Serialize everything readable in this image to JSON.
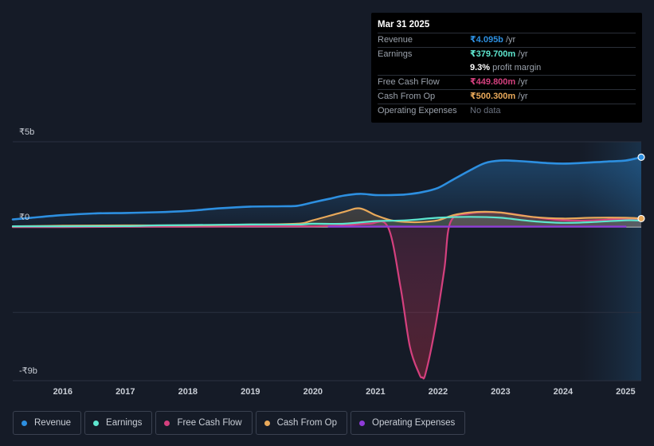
{
  "tooltip": {
    "date": "Mar 31 2025",
    "rows": [
      {
        "label": "Revenue",
        "value": "₹4.095b",
        "unit": " /yr",
        "color": "#2d8fe0"
      },
      {
        "label": "Earnings",
        "value": "₹379.700m",
        "unit": " /yr",
        "color": "#5ee6cf"
      },
      {
        "label": "",
        "value": "9.3%",
        "unit": " profit margin",
        "color": "#ffffff"
      },
      {
        "label": "Free Cash Flow",
        "value": "₹449.800m",
        "unit": " /yr",
        "color": "#d4407e"
      },
      {
        "label": "Cash From Op",
        "value": "₹500.300m",
        "unit": " /yr",
        "color": "#e9a95a"
      },
      {
        "label": "Operating Expenses",
        "value": "No data",
        "unit": "",
        "color": "#6b7280"
      }
    ]
  },
  "chart_data": {
    "type": "line",
    "y_axis_labels": [
      "₹5b",
      "₹0",
      "-₹9b"
    ],
    "ylim": [
      -9,
      5
    ],
    "x_tick_labels": [
      "2016",
      "2017",
      "2018",
      "2019",
      "2020",
      "2021",
      "2022",
      "2023",
      "2024",
      "2025"
    ],
    "x_range": [
      2015.2,
      2025.25
    ],
    "forecast_start": 2024.25,
    "series": [
      {
        "name": "Revenue",
        "color": "#2d8fe0",
        "x": [
          2015.2,
          2015.5,
          2016.0,
          2016.5,
          2017.0,
          2017.5,
          2018.0,
          2018.5,
          2019.0,
          2019.5,
          2019.75,
          2020.0,
          2020.25,
          2020.5,
          2020.75,
          2021.0,
          2021.25,
          2021.5,
          2021.75,
          2022.0,
          2022.25,
          2022.5,
          2022.75,
          2023.0,
          2023.25,
          2023.5,
          2023.75,
          2024.0,
          2024.25,
          2024.5,
          2024.75,
          2025.0,
          2025.25
        ],
        "values": [
          0.45,
          0.55,
          0.7,
          0.8,
          0.83,
          0.87,
          0.95,
          1.1,
          1.2,
          1.22,
          1.25,
          1.45,
          1.65,
          1.85,
          1.95,
          1.88,
          1.88,
          1.92,
          2.05,
          2.3,
          2.8,
          3.3,
          3.75,
          3.9,
          3.88,
          3.82,
          3.75,
          3.72,
          3.75,
          3.8,
          3.85,
          3.9,
          4.095
        ]
      },
      {
        "name": "Earnings",
        "color": "#5ee6cf",
        "x": [
          2015.2,
          2016.0,
          2017.0,
          2017.5,
          2018.0,
          2019.0,
          2019.75,
          2020.0,
          2020.5,
          2021.0,
          2021.5,
          2022.0,
          2022.5,
          2023.0,
          2023.5,
          2024.0,
          2024.5,
          2025.0,
          2025.25
        ],
        "values": [
          0.05,
          0.05,
          0.06,
          0.1,
          0.12,
          0.15,
          0.15,
          0.2,
          0.2,
          0.35,
          0.4,
          0.55,
          0.6,
          0.55,
          0.35,
          0.25,
          0.3,
          0.4,
          0.38
        ]
      },
      {
        "name": "Free Cash Flow",
        "color": "#d4407e",
        "x": [
          2015.2,
          2016.0,
          2017.0,
          2018.0,
          2019.0,
          2019.75,
          2020.0,
          2020.5,
          2020.9,
          2021.2,
          2021.4,
          2021.55,
          2021.7,
          2021.75,
          2021.8,
          2021.95,
          2022.1,
          2022.2,
          2022.5,
          2023.0,
          2023.5,
          2024.0,
          2024.5,
          2025.0,
          2025.25
        ],
        "values": [
          0.0,
          0.0,
          0.02,
          0.02,
          0.05,
          0.05,
          0.05,
          0.1,
          0.2,
          0.0,
          -3.5,
          -7.0,
          -8.6,
          -8.8,
          -8.6,
          -6.0,
          -2.5,
          0.3,
          0.8,
          0.85,
          0.6,
          0.4,
          0.4,
          0.5,
          0.45
        ]
      },
      {
        "name": "Cash From Op",
        "color": "#e9a95a",
        "x": [
          2015.2,
          2016.0,
          2017.0,
          2018.0,
          2019.0,
          2019.75,
          2020.0,
          2020.5,
          2020.75,
          2021.0,
          2021.25,
          2021.5,
          2021.75,
          2022.0,
          2022.25,
          2022.5,
          2022.75,
          2023.0,
          2023.5,
          2024.0,
          2024.5,
          2025.0,
          2025.25
        ],
        "values": [
          0.05,
          0.08,
          0.1,
          0.1,
          0.15,
          0.2,
          0.4,
          0.9,
          1.1,
          0.7,
          0.4,
          0.3,
          0.3,
          0.4,
          0.7,
          0.85,
          0.9,
          0.85,
          0.6,
          0.5,
          0.55,
          0.55,
          0.5
        ]
      },
      {
        "name": "Operating Expenses",
        "color": "#8f3bd9",
        "x": [
          2020.25,
          2020.5,
          2021.0,
          2021.5,
          2022.0,
          2022.5,
          2023.0,
          2023.5,
          2024.0,
          2024.5,
          2025.0
        ],
        "values": [
          0.03,
          0.03,
          0.03,
          0.03,
          0.03,
          0.03,
          0.03,
          0.03,
          0.03,
          0.03,
          0.03
        ]
      }
    ]
  },
  "legend": [
    {
      "label": "Revenue",
      "color": "#2d8fe0"
    },
    {
      "label": "Earnings",
      "color": "#5ee6cf"
    },
    {
      "label": "Free Cash Flow",
      "color": "#d4407e"
    },
    {
      "label": "Cash From Op",
      "color": "#e9a95a"
    },
    {
      "label": "Operating Expenses",
      "color": "#8f3bd9"
    }
  ]
}
